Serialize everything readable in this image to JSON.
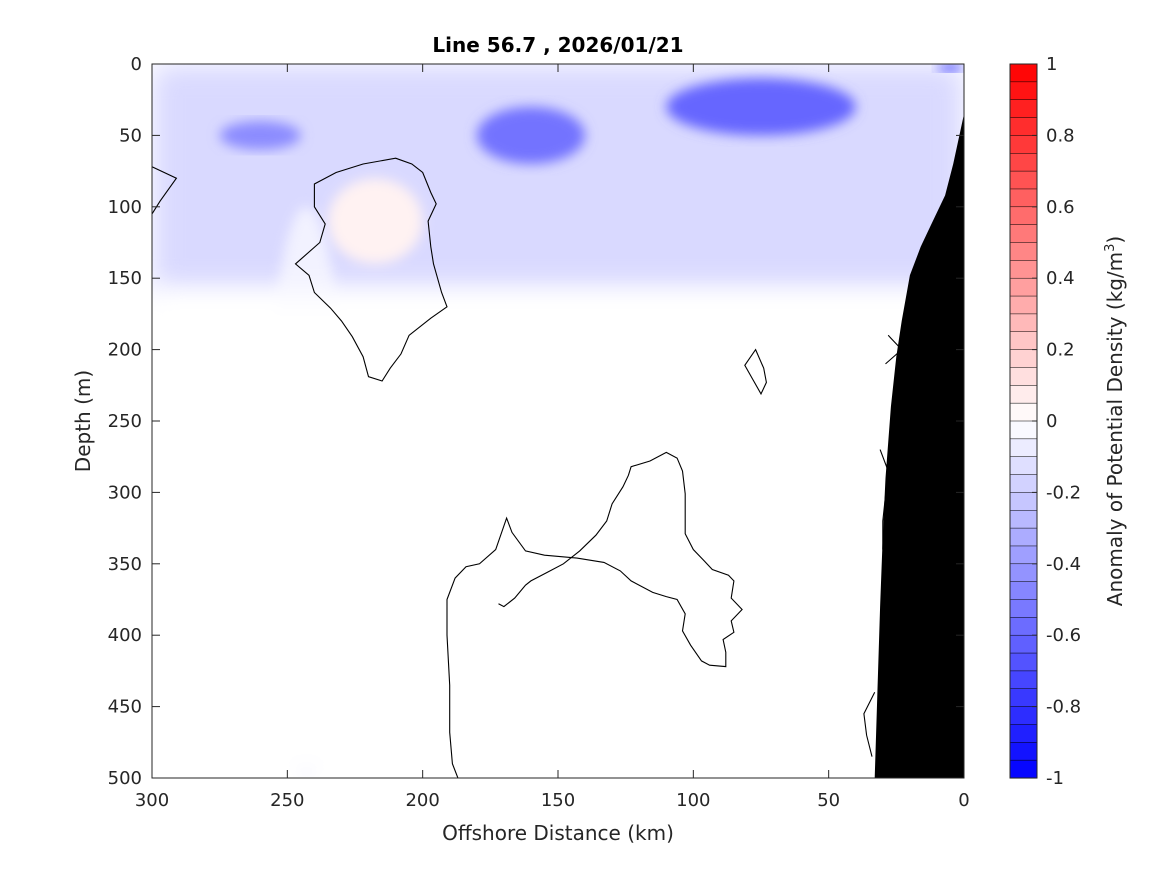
{
  "chart_data": {
    "type": "heatmap",
    "subtype": "filled contour section",
    "title": "Line 56.7 , 2026/01/21",
    "xlabel": "Offshore Distance (km)",
    "ylabel": "Depth (m)",
    "xlim": [
      300,
      0
    ],
    "x_reversed": true,
    "ylim": [
      0,
      500
    ],
    "y_reversed": true,
    "xticks": [
      300,
      250,
      200,
      150,
      100,
      50,
      0
    ],
    "yticks": [
      0,
      50,
      100,
      150,
      200,
      250,
      300,
      350,
      400,
      450,
      500
    ],
    "colorbar": {
      "label_prefix": "Anomaly of Potential Density (kg/m",
      "label_sup": "3",
      "label_suffix": ")",
      "range": [
        -1,
        1
      ],
      "ticks": [
        "1",
        "0.8",
        "0.6",
        "0.4",
        "0.2",
        "0",
        "-0.2",
        "-0.4",
        "-0.6",
        "-0.8",
        "-1"
      ],
      "tick_values": [
        1,
        0.8,
        0.6,
        0.4,
        0.2,
        0,
        -0.2,
        -0.4,
        -0.6,
        -0.8,
        -1
      ],
      "levels": 40,
      "colormap": "blue-white-red",
      "colors": {
        "low": "#0000ff",
        "mid": "#ffffff",
        "high": "#ff0000"
      }
    },
    "field_regions": [
      {
        "name": "surface low-density layer",
        "value": -0.15,
        "distance_km": [
          0,
          300
        ],
        "depth_m": [
          0,
          160
        ]
      },
      {
        "name": "near-shore subsurface minimum",
        "value": -0.6,
        "distance_km": [
          40,
          110
        ],
        "depth_m": [
          10,
          50
        ]
      },
      {
        "name": "offshore subsurface minimum",
        "value": -0.55,
        "distance_km": [
          140,
          180
        ],
        "depth_m": [
          30,
          70
        ]
      },
      {
        "name": "outer minimum",
        "value": -0.45,
        "distance_km": [
          245,
          275
        ],
        "depth_m": [
          40,
          60
        ]
      },
      {
        "name": "surface minimum at coast",
        "value": -0.8,
        "distance_km": [
          0,
          10
        ],
        "depth_m": [
          0,
          5
        ]
      },
      {
        "name": "positive anomaly pocket",
        "value": 0.05,
        "distance_km": [
          200,
          235
        ],
        "depth_m": [
          80,
          140
        ]
      },
      {
        "name": "deep column weak negative",
        "value": -0.05,
        "distance_km": [
          228,
          258
        ],
        "depth_m": [
          100,
          500
        ]
      },
      {
        "name": "deep background",
        "value": 0.0,
        "distance_km": [
          0,
          300
        ],
        "depth_m": [
          160,
          500
        ]
      }
    ],
    "zero_contours": [
      {
        "name": "pocket outline",
        "points": [
          [
            210,
            66
          ],
          [
            204,
            70
          ],
          [
            200,
            76
          ],
          [
            197,
            90
          ],
          [
            195,
            98
          ],
          [
            198,
            110
          ],
          [
            197,
            128
          ],
          [
            196,
            140
          ],
          [
            193,
            160
          ],
          [
            191,
            170
          ],
          [
            197,
            178
          ],
          [
            205,
            190
          ],
          [
            208,
            203
          ],
          [
            212,
            213
          ],
          [
            215,
            222
          ],
          [
            220,
            219
          ],
          [
            222,
            205
          ],
          [
            226,
            191
          ],
          [
            230,
            180
          ],
          [
            234,
            171
          ],
          [
            240,
            160
          ],
          [
            242,
            148
          ],
          [
            247,
            140
          ],
          [
            238,
            125
          ],
          [
            236,
            112
          ],
          [
            240,
            100
          ],
          [
            240,
            84
          ],
          [
            232,
            76
          ],
          [
            222,
            70
          ]
        ]
      },
      {
        "name": "edge contour upper left",
        "points": [
          [
            300,
            72
          ],
          [
            291,
            80
          ],
          [
            297,
            96
          ],
          [
            300,
            105
          ]
        ]
      },
      {
        "name": "deep contour",
        "points": [
          [
            187,
            500
          ],
          [
            189,
            490
          ],
          [
            190,
            468
          ],
          [
            190,
            435
          ],
          [
            191,
            400
          ],
          [
            191,
            375
          ],
          [
            188,
            360
          ],
          [
            184,
            352
          ],
          [
            179,
            350
          ],
          [
            173,
            340
          ],
          [
            169,
            318
          ],
          [
            167,
            328
          ],
          [
            162,
            341
          ],
          [
            155,
            344
          ],
          [
            143,
            346
          ],
          [
            133,
            349
          ],
          [
            127,
            355
          ],
          [
            123,
            362
          ],
          [
            115,
            370
          ],
          [
            110,
            373
          ],
          [
            106,
            375
          ],
          [
            103,
            385
          ],
          [
            104,
            397
          ],
          [
            101,
            407
          ],
          [
            97,
            418
          ],
          [
            94,
            421
          ],
          [
            88,
            422
          ],
          [
            88,
            412
          ],
          [
            89,
            403
          ],
          [
            85,
            398
          ],
          [
            86,
            390
          ],
          [
            82,
            382
          ],
          [
            86,
            374
          ],
          [
            85,
            362
          ],
          [
            87,
            358
          ],
          [
            93,
            354
          ],
          [
            96,
            348
          ],
          [
            100,
            340
          ],
          [
            103,
            329
          ],
          [
            103,
            318
          ],
          [
            103,
            301
          ],
          [
            104,
            285
          ],
          [
            106,
            276
          ],
          [
            110,
            272
          ],
          [
            116,
            278
          ],
          [
            123,
            282
          ],
          [
            124,
            288
          ],
          [
            126,
            296
          ],
          [
            130,
            308
          ],
          [
            132,
            320
          ],
          [
            136,
            330
          ],
          [
            142,
            341
          ],
          [
            148,
            350
          ],
          [
            154,
            356
          ],
          [
            160,
            362
          ],
          [
            162,
            365
          ],
          [
            166,
            374
          ],
          [
            170,
            380
          ],
          [
            172,
            378
          ]
        ]
      },
      {
        "name": "small loop",
        "points": [
          [
            77,
            200
          ],
          [
            74,
            213
          ],
          [
            73,
            223
          ],
          [
            75,
            231
          ],
          [
            78,
            221
          ],
          [
            81,
            211
          ]
        ]
      },
      {
        "name": "near-slope contour upper",
        "points": [
          [
            28,
            190
          ],
          [
            23,
            200
          ],
          [
            29,
            210
          ]
        ]
      },
      {
        "name": "near-slope contour middle",
        "points": [
          [
            31,
            270
          ],
          [
            28,
            285
          ],
          [
            30,
            320
          ],
          [
            30,
            340
          ]
        ]
      },
      {
        "name": "near-slope contour lower",
        "points": [
          [
            33,
            440
          ],
          [
            37,
            455
          ],
          [
            36,
            470
          ],
          [
            34,
            485
          ]
        ]
      }
    ],
    "bathymetry": {
      "label": "seafloor",
      "color": "#000000",
      "profile": [
        [
          0,
          35
        ],
        [
          4,
          70
        ],
        [
          7,
          92
        ],
        [
          12,
          112
        ],
        [
          16,
          128
        ],
        [
          20,
          148
        ],
        [
          23,
          180
        ],
        [
          25,
          205
        ],
        [
          27,
          240
        ],
        [
          29,
          290
        ],
        [
          30,
          330
        ],
        [
          31,
          380
        ],
        [
          32,
          440
        ],
        [
          33,
          500
        ]
      ]
    }
  }
}
